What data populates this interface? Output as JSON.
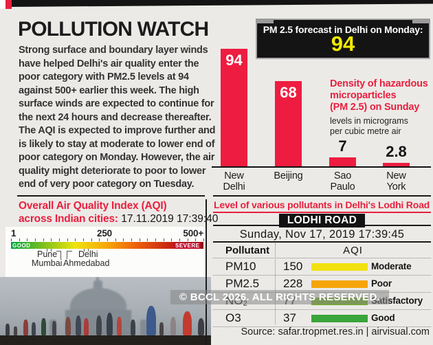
{
  "theme": {
    "accent_red": "#e9203f",
    "bar_red": "#ee1c40",
    "highlight_yellow": "#f2ea00",
    "panel_black": "#141414",
    "background_grey": "#eceae7"
  },
  "header": {
    "title": "POLLUTION WATCH",
    "body": "Strong surface and boundary layer winds have helped Delhi's air quality enter the poor category with PM2.5 levels at 94 against 500+ earlier this week. The high surface winds are expected to continue for the next 24 hours and decrease thereafter. The AQI is expected to improve further and is likely to stay at moderate to lower end of poor category on Monday. However, the air quality might deteriorate to poor to lower end of very poor category on Tuesday."
  },
  "forecast": {
    "label": "PM 2.5 forecast in Delhi on Monday:",
    "value": "94"
  },
  "chart_data": {
    "type": "bar",
    "categories": [
      "New Delhi",
      "Beijing",
      "Sao Paulo",
      "New York"
    ],
    "values": [
      94,
      68,
      7,
      2.8
    ],
    "value_labels": [
      "94",
      "68",
      "7",
      "2.8"
    ],
    "annotation": "Density of hazardous\nmicroparticles\n(PM 2.5) on Sunday",
    "unit_note": "levels in micrograms\nper cubic metre air",
    "bar_color": "#ee1c40",
    "ylim": [
      0,
      100
    ],
    "grid": false,
    "legend": "none"
  },
  "aqi_scale": {
    "title_line1": "Overall Air Quality Index (AQI)",
    "title_line2": "across Indian cities:",
    "datetime": "17.11.2019  17:39:40",
    "min_label": "1",
    "mid_label": "250",
    "max_label": "500+",
    "good_label": "GOOD",
    "severe_label": "SEVERE",
    "gradient": [
      "#00a33e",
      "#7cc01c",
      "#eee40e",
      "#f6a60a",
      "#ea5a0d",
      "#c5200f",
      "#8c0d0d"
    ],
    "cities": {
      "pune": "Pune",
      "delhi": "Delhi",
      "mumbai": "Mumbai",
      "ahmedabad": "Ahmedabad"
    }
  },
  "lodhi": {
    "heading": "Level of various pollutants in Delhi's Lodhi Road",
    "station_badge": "LODHI ROAD",
    "datetime": "Sunday, Nov 17, 2019  17:39:45",
    "table": {
      "col_pollutant": "Pollutant",
      "col_aqi": "AQI",
      "rows": [
        {
          "pollutant": "PM10",
          "value": "150",
          "status": "Moderate",
          "color": "#f2e10e"
        },
        {
          "pollutant": "PM2.5",
          "value": "228",
          "status": "Poor",
          "color": "#f5a509"
        },
        {
          "pollutant": "NO₂",
          "value": "77",
          "status": "Satisfactory",
          "color": "#6fae22"
        },
        {
          "pollutant": "O3",
          "value": "37",
          "status": "Good",
          "color": "#3aa53a"
        }
      ]
    },
    "source": "Source: safar.tropmet.res.in | airvisual.com"
  },
  "watermark": "© BCCL 2026. ALL RIGHTS RESERVED."
}
